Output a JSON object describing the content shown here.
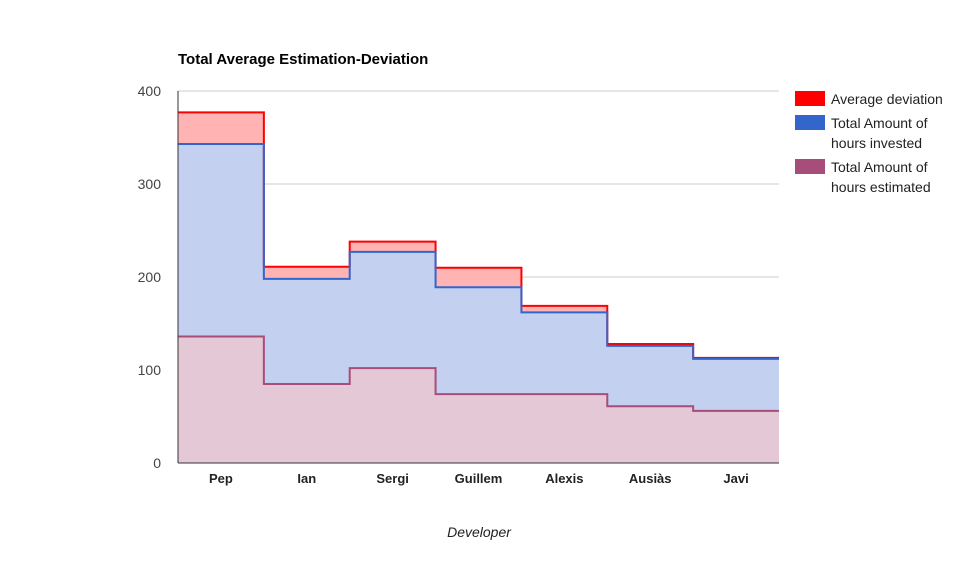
{
  "chart_data": {
    "type": "area",
    "subtype": "stepped-area",
    "title": "Total Average Estimation-Deviation",
    "xlabel": "Developer",
    "ylabel": "",
    "ylim": [
      0,
      400
    ],
    "yticks": [
      0,
      100,
      200,
      300,
      400
    ],
    "grid": true,
    "legend_position": "right",
    "categories": [
      "Pep",
      "Ian",
      "Sergi",
      "Guillem",
      "Alexis",
      "Ausiàs",
      "Javi"
    ],
    "series": [
      {
        "name": "Average deviation",
        "color": "#ff0000",
        "fill": "#ffb3b3",
        "values": [
          377,
          211,
          238,
          210,
          169,
          128,
          113
        ]
      },
      {
        "name": "Total Amount of hours invested",
        "color": "#3366cc",
        "fill": "#c3d0ef",
        "values": [
          343,
          198,
          227,
          189,
          162,
          126,
          112
        ]
      },
      {
        "name": "Total Amount of hours estimated",
        "color": "#a64d79",
        "fill": "#e4c8d6",
        "values": [
          136,
          85,
          102,
          74,
          74,
          61,
          56
        ]
      }
    ],
    "legend": [
      {
        "lines": [
          "Average deviation"
        ],
        "color": "#ff0000"
      },
      {
        "lines": [
          "Total Amount of",
          "hours invested"
        ],
        "color": "#3366cc"
      },
      {
        "lines": [
          "Total Amount of",
          "hours estimated"
        ],
        "color": "#a64d79"
      }
    ]
  }
}
